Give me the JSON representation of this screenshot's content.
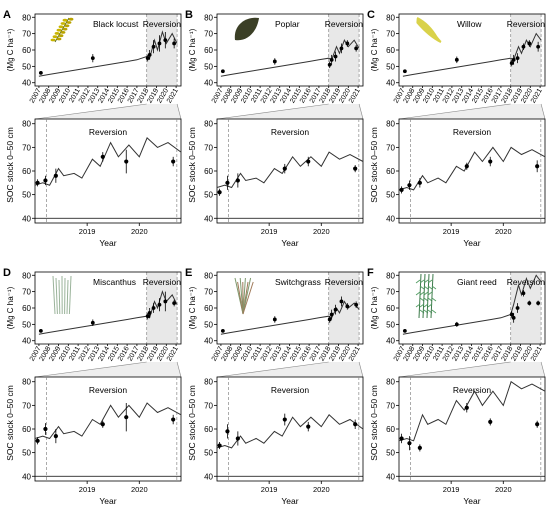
{
  "figure": {
    "y_label_top": "(Mg C ha⁻¹)",
    "y_label_bottom": "SOC stock 0–50 cm",
    "x_label": "Year",
    "reversion_label": "Reversion"
  },
  "chart_data": [
    {
      "panel": "A",
      "crop": "Black locust",
      "type": "line",
      "top": {
        "xlim": [
          2006.6,
          2021.5
        ],
        "ylim": [
          38,
          82
        ],
        "yticks": [
          40,
          50,
          60,
          70,
          80
        ],
        "xticks": [
          "2007",
          "2008",
          "2009",
          "2010",
          "2011",
          "2012",
          "2013",
          "2014",
          "2015",
          "2016",
          "2017",
          "2018",
          "2019",
          "2020",
          "2021"
        ],
        "model_x": [
          2007.0,
          2008.0,
          2009.0,
          2010.0,
          2011.0,
          2012.0,
          2013.0,
          2014.0,
          2015.0,
          2016.0,
          2017.0,
          2018.0,
          2018.3,
          2018.8,
          2019.1,
          2019.6,
          2020.0,
          2020.6,
          2021.1
        ],
        "model_y": [
          44,
          45,
          46,
          47,
          48,
          49,
          50,
          51,
          52,
          53,
          54,
          56,
          55,
          66,
          60,
          71,
          64,
          70,
          64
        ],
        "obs_x": [
          2007.2,
          2012.5,
          2018.1,
          2018.3,
          2018.7,
          2019.3,
          2019.9,
          2020.8
        ],
        "obs_y": [
          46,
          55,
          55,
          57,
          62,
          64,
          66,
          64
        ],
        "obs_err": [
          1,
          2.5,
          2,
          3,
          4,
          5,
          5,
          3
        ]
      },
      "bottom": {
        "xlim": [
          2018.0,
          2020.8
        ],
        "ylim": [
          38,
          82
        ],
        "yticks": [
          40,
          50,
          60,
          70,
          80
        ],
        "xticks": [
          2019,
          2020
        ],
        "model_x": [
          2018.0,
          2018.15,
          2018.28,
          2018.45,
          2018.55,
          2018.75,
          2018.9,
          2019.1,
          2019.25,
          2019.45,
          2019.6,
          2019.8,
          2020.0,
          2020.15,
          2020.35,
          2020.55,
          2020.8
        ],
        "model_y": [
          54,
          55,
          54,
          61,
          58,
          59,
          57,
          65,
          62,
          72,
          66,
          71,
          66,
          74,
          70,
          72,
          68
        ],
        "obs_x": [
          2018.05,
          2018.2,
          2018.4,
          2019.3,
          2019.75,
          2020.65
        ],
        "obs_y": [
          55,
          56,
          58,
          66,
          64,
          64
        ],
        "obs_err": [
          1.5,
          2,
          3,
          2,
          5,
          2
        ],
        "vlines": [
          2018.22,
          2020.72
        ]
      }
    },
    {
      "panel": "B",
      "crop": "Poplar",
      "type": "line",
      "top": {
        "xlim": [
          2006.6,
          2021.5
        ],
        "ylim": [
          38,
          82
        ],
        "yticks": [
          40,
          50,
          60,
          70,
          80
        ],
        "xticks": [
          "2007",
          "2008",
          "2009",
          "2010",
          "2011",
          "2012",
          "2013",
          "2014",
          "2015",
          "2016",
          "2017",
          "2018",
          "2019",
          "2020",
          "2021"
        ],
        "model_x": [
          2007.0,
          2008.0,
          2009.0,
          2010.0,
          2011.0,
          2012.0,
          2013.0,
          2014.0,
          2015.0,
          2016.0,
          2017.0,
          2018.0,
          2018.3,
          2018.8,
          2019.1,
          2019.6,
          2020.0,
          2020.6,
          2021.1
        ],
        "model_y": [
          44,
          45,
          46,
          47,
          48,
          49,
          50,
          51,
          52,
          53,
          54,
          55,
          54,
          62,
          58,
          66,
          62,
          66,
          61
        ],
        "obs_x": [
          2007.2,
          2012.5,
          2018.1,
          2018.3,
          2018.7,
          2019.3,
          2019.9,
          2020.8
        ],
        "obs_y": [
          47,
          53,
          51,
          54,
          56,
          61,
          64,
          61
        ],
        "obs_err": [
          1,
          2,
          2,
          3,
          3,
          3,
          2,
          2
        ]
      },
      "bottom": {
        "xlim": [
          2018.0,
          2020.8
        ],
        "ylim": [
          38,
          82
        ],
        "yticks": [
          40,
          50,
          60,
          70,
          80
        ],
        "xticks": [
          2019,
          2020
        ],
        "model_x": [
          2018.0,
          2018.15,
          2018.28,
          2018.45,
          2018.55,
          2018.75,
          2018.9,
          2019.1,
          2019.25,
          2019.45,
          2019.6,
          2019.8,
          2020.0,
          2020.15,
          2020.35,
          2020.55,
          2020.8
        ],
        "model_y": [
          53,
          54,
          53,
          59,
          56,
          57,
          55,
          61,
          59,
          66,
          62,
          66,
          62,
          68,
          65,
          67,
          64
        ],
        "obs_x": [
          2018.05,
          2018.2,
          2018.4,
          2019.3,
          2019.75,
          2020.65
        ],
        "obs_y": [
          51,
          55,
          56,
          61,
          64,
          61
        ],
        "obs_err": [
          1.5,
          3,
          3,
          2,
          2,
          1.5
        ],
        "vlines": [
          2018.22,
          2020.72
        ]
      }
    },
    {
      "panel": "C",
      "crop": "Willow",
      "type": "line",
      "top": {
        "xlim": [
          2006.6,
          2021.5
        ],
        "ylim": [
          38,
          82
        ],
        "yticks": [
          40,
          50,
          60,
          70,
          80
        ],
        "xticks": [
          "2007",
          "2008",
          "2009",
          "2010",
          "2011",
          "2012",
          "2013",
          "2014",
          "2015",
          "2016",
          "2017",
          "2018",
          "2019",
          "2020",
          "2021"
        ],
        "model_x": [
          2007.0,
          2008.0,
          2009.0,
          2010.0,
          2011.0,
          2012.0,
          2013.0,
          2014.0,
          2015.0,
          2016.0,
          2017.0,
          2018.0,
          2018.3,
          2018.8,
          2019.1,
          2019.6,
          2020.0,
          2020.6,
          2021.1
        ],
        "model_y": [
          44,
          45,
          46,
          47,
          48,
          49,
          50,
          51,
          52,
          53,
          54,
          55,
          54,
          62,
          58,
          66,
          62,
          70,
          66
        ],
        "obs_x": [
          2007.2,
          2012.5,
          2018.1,
          2018.3,
          2018.7,
          2019.3,
          2019.9,
          2020.8
        ],
        "obs_y": [
          47,
          54,
          52,
          54,
          55,
          62,
          64,
          62
        ],
        "obs_err": [
          1,
          2,
          2,
          3,
          3,
          2,
          2,
          3
        ]
      },
      "bottom": {
        "xlim": [
          2018.0,
          2020.8
        ],
        "ylim": [
          38,
          82
        ],
        "yticks": [
          40,
          50,
          60,
          70,
          80
        ],
        "xticks": [
          2019,
          2020
        ],
        "model_x": [
          2018.0,
          2018.15,
          2018.28,
          2018.45,
          2018.55,
          2018.75,
          2018.9,
          2019.1,
          2019.25,
          2019.45,
          2019.6,
          2019.8,
          2020.0,
          2020.15,
          2020.35,
          2020.55,
          2020.8
        ],
        "model_y": [
          52,
          53,
          52,
          58,
          55,
          57,
          55,
          62,
          60,
          68,
          64,
          70,
          64,
          70,
          67,
          69,
          66
        ],
        "obs_x": [
          2018.05,
          2018.2,
          2018.4,
          2019.3,
          2019.75,
          2020.65
        ],
        "obs_y": [
          52,
          54,
          55,
          62,
          64,
          62
        ],
        "obs_err": [
          1.5,
          2,
          2,
          1.5,
          2,
          2.5
        ],
        "vlines": [
          2018.22,
          2020.72
        ]
      }
    },
    {
      "panel": "D",
      "crop": "Miscanthus",
      "type": "line",
      "top": {
        "xlim": [
          2006.6,
          2021.5
        ],
        "ylim": [
          38,
          82
        ],
        "yticks": [
          40,
          50,
          60,
          70,
          80
        ],
        "xticks": [
          "2007",
          "2008",
          "2009",
          "2010",
          "2011",
          "2012",
          "2013",
          "2014",
          "2015",
          "2016",
          "2017",
          "2018",
          "2019",
          "2020",
          "2021"
        ],
        "model_x": [
          2007.0,
          2008.0,
          2009.0,
          2010.0,
          2011.0,
          2012.0,
          2013.0,
          2014.0,
          2015.0,
          2016.0,
          2017.0,
          2018.0,
          2018.3,
          2018.8,
          2019.1,
          2019.6,
          2020.0,
          2020.6,
          2021.1
        ],
        "model_y": [
          44,
          45,
          46,
          47,
          48,
          49,
          50,
          51,
          52,
          53,
          54,
          55,
          54,
          64,
          60,
          70,
          64,
          68,
          62
        ],
        "obs_x": [
          2007.2,
          2012.5,
          2018.1,
          2018.3,
          2018.7,
          2019.3,
          2019.9,
          2020.8
        ],
        "obs_y": [
          46,
          51,
          55,
          57,
          60,
          62,
          64,
          63
        ],
        "obs_err": [
          1,
          2,
          2,
          3,
          3,
          4,
          6,
          2
        ]
      },
      "bottom": {
        "xlim": [
          2018.0,
          2020.8
        ],
        "ylim": [
          38,
          82
        ],
        "yticks": [
          40,
          50,
          60,
          70,
          80
        ],
        "xticks": [
          2019,
          2020
        ],
        "model_x": [
          2018.0,
          2018.15,
          2018.28,
          2018.45,
          2018.55,
          2018.75,
          2018.9,
          2019.1,
          2019.25,
          2019.45,
          2019.6,
          2019.8,
          2020.0,
          2020.15,
          2020.35,
          2020.55,
          2020.8
        ],
        "model_y": [
          56,
          57,
          56,
          61,
          58,
          59,
          57,
          64,
          62,
          70,
          65,
          70,
          65,
          71,
          67,
          69,
          66
        ],
        "obs_x": [
          2018.05,
          2018.2,
          2018.4,
          2019.3,
          2019.75,
          2020.65
        ],
        "obs_y": [
          55,
          60,
          57,
          62,
          65,
          64
        ],
        "obs_err": [
          1.5,
          2.5,
          3,
          1.5,
          6,
          2
        ],
        "vlines": [
          2018.22,
          2020.72
        ]
      }
    },
    {
      "panel": "E",
      "crop": "Switchgrass",
      "type": "line",
      "top": {
        "xlim": [
          2006.6,
          2021.5
        ],
        "ylim": [
          38,
          82
        ],
        "yticks": [
          40,
          50,
          60,
          70,
          80
        ],
        "xticks": [
          "2007",
          "2008",
          "2009",
          "2010",
          "2011",
          "2012",
          "2013",
          "2014",
          "2015",
          "2016",
          "2017",
          "2018",
          "2019",
          "2020",
          "2021"
        ],
        "model_x": [
          2007.0,
          2008.0,
          2009.0,
          2010.0,
          2011.0,
          2012.0,
          2013.0,
          2014.0,
          2015.0,
          2016.0,
          2017.0,
          2018.0,
          2018.3,
          2018.8,
          2019.1,
          2019.6,
          2020.0,
          2020.6,
          2021.1
        ],
        "model_y": [
          44,
          45,
          46,
          47,
          48,
          49,
          50,
          51,
          52,
          53,
          54,
          55,
          54,
          60,
          57,
          64,
          60,
          63,
          59
        ],
        "obs_x": [
          2007.2,
          2012.5,
          2018.1,
          2018.3,
          2018.7,
          2019.3,
          2019.9,
          2020.8
        ],
        "obs_y": [
          46,
          53,
          53,
          56,
          59,
          64,
          61,
          62
        ],
        "obs_err": [
          1,
          2,
          2,
          3,
          3,
          3,
          2,
          2
        ]
      },
      "bottom": {
        "xlim": [
          2018.0,
          2020.8
        ],
        "ylim": [
          38,
          82
        ],
        "yticks": [
          40,
          50,
          60,
          70,
          80
        ],
        "xticks": [
          2019,
          2020
        ],
        "model_x": [
          2018.0,
          2018.15,
          2018.28,
          2018.45,
          2018.55,
          2018.75,
          2018.9,
          2019.1,
          2019.25,
          2019.45,
          2019.6,
          2019.8,
          2020.0,
          2020.15,
          2020.35,
          2020.55,
          2020.8
        ],
        "model_y": [
          52,
          53,
          52,
          57,
          54,
          56,
          54,
          59,
          57,
          65,
          61,
          65,
          61,
          66,
          62,
          64,
          60
        ],
        "obs_x": [
          2018.05,
          2018.2,
          2018.4,
          2019.3,
          2019.75,
          2020.65
        ],
        "obs_y": [
          53,
          59,
          56,
          64,
          61,
          62
        ],
        "obs_err": [
          1.5,
          3,
          3,
          2.5,
          2,
          2
        ],
        "vlines": [
          2018.22,
          2020.72
        ]
      }
    },
    {
      "panel": "F",
      "crop": "Giant reed",
      "type": "line",
      "top": {
        "xlim": [
          2006.6,
          2021.5
        ],
        "ylim": [
          38,
          82
        ],
        "yticks": [
          40,
          50,
          60,
          70,
          80
        ],
        "xticks": [
          "2007",
          "2008",
          "2009",
          "2010",
          "2011",
          "2012",
          "2013",
          "2014",
          "2015",
          "2016",
          "2017",
          "2018",
          "2019",
          "2020",
          "2021"
        ],
        "model_x": [
          2007.0,
          2008.0,
          2009.0,
          2010.0,
          2011.0,
          2012.0,
          2013.0,
          2014.0,
          2015.0,
          2016.0,
          2017.0,
          2018.0,
          2018.3,
          2018.8,
          2019.1,
          2019.6,
          2020.0,
          2020.6,
          2021.1
        ],
        "model_y": [
          44,
          45,
          46,
          47,
          48,
          49,
          50,
          51,
          52,
          53,
          54,
          56,
          62,
          74,
          68,
          78,
          72,
          80,
          76
        ],
        "obs_x": [
          2007.2,
          2012.5,
          2018.1,
          2018.3,
          2018.7,
          2019.3,
          2019.9,
          2020.8
        ],
        "obs_y": [
          46,
          50,
          56,
          54,
          60,
          69,
          63,
          63
        ],
        "obs_err": [
          1,
          1.5,
          2,
          3,
          3,
          2,
          1.5,
          1.5
        ]
      },
      "bottom": {
        "xlim": [
          2018.0,
          2020.8
        ],
        "ylim": [
          38,
          82
        ],
        "yticks": [
          40,
          50,
          60,
          70,
          80
        ],
        "xticks": [
          2019,
          2020
        ],
        "model_x": [
          2018.0,
          2018.15,
          2018.28,
          2018.45,
          2018.55,
          2018.75,
          2018.9,
          2019.1,
          2019.25,
          2019.45,
          2019.6,
          2019.8,
          2020.0,
          2020.15,
          2020.35,
          2020.55,
          2020.8
        ],
        "model_y": [
          55,
          56,
          55,
          66,
          62,
          64,
          62,
          72,
          68,
          76,
          70,
          76,
          70,
          80,
          77,
          79,
          76
        ],
        "obs_x": [
          2018.05,
          2018.2,
          2018.4,
          2019.3,
          2019.75,
          2020.65
        ],
        "obs_y": [
          56,
          54,
          52,
          69,
          63,
          62
        ],
        "obs_err": [
          2,
          3,
          1.5,
          2,
          1.5,
          1.5
        ],
        "vlines": [
          2018.22,
          2020.72
        ]
      }
    }
  ]
}
